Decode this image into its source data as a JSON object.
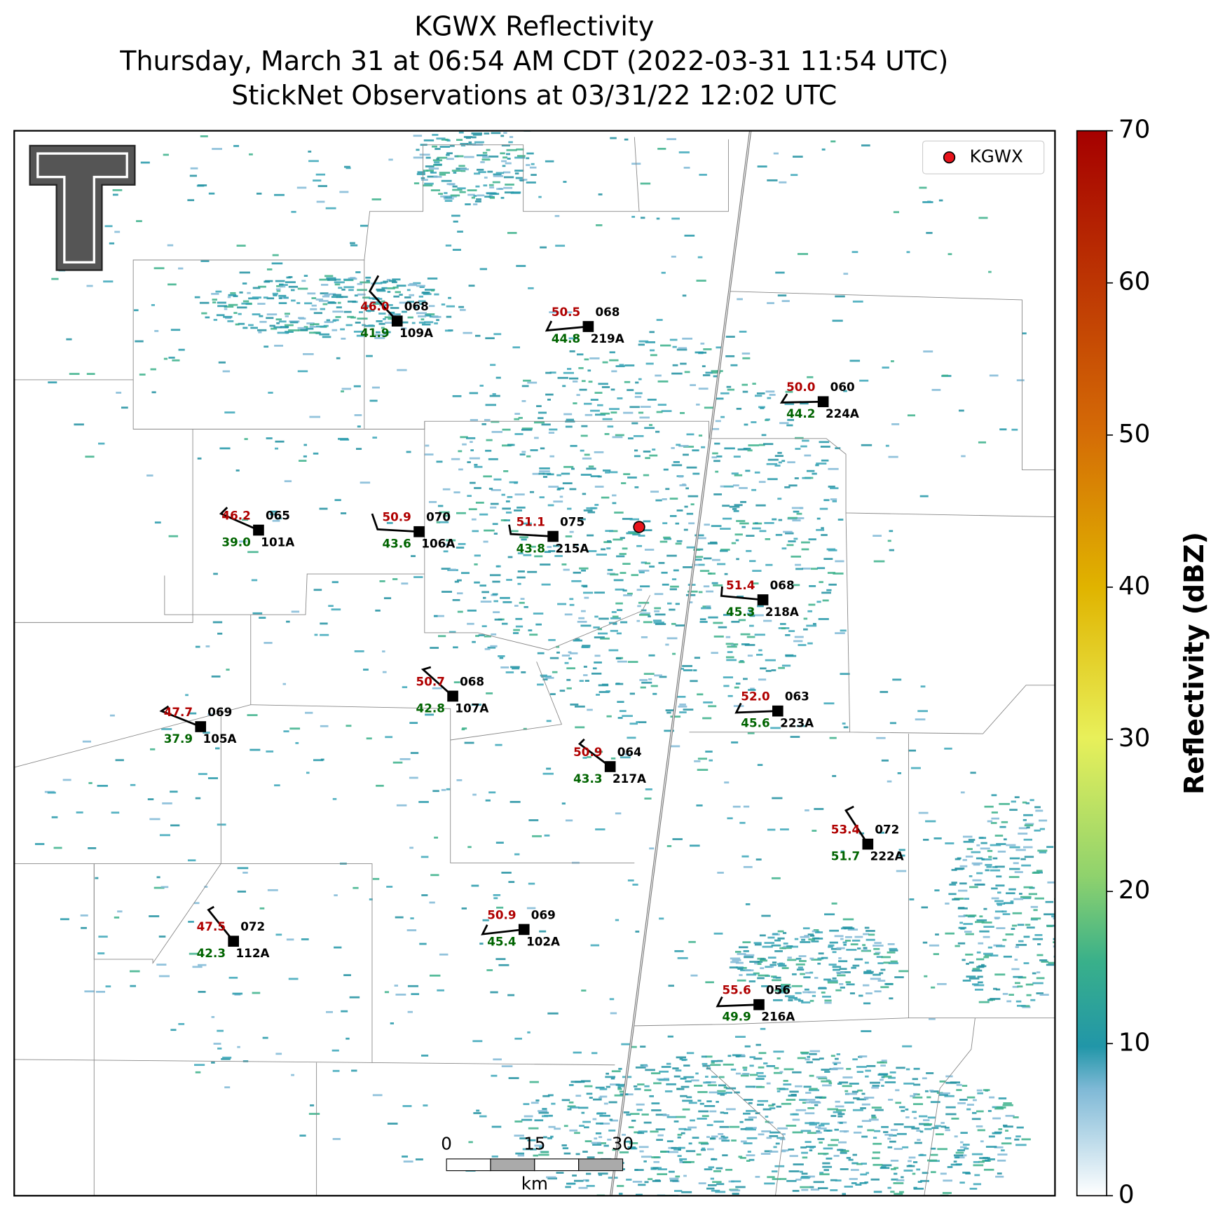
{
  "title": [
    "KGWX Reflectivity",
    "Thursday, March 31 at 06:54 AM CDT (2022-03-31 11:54 UTC)",
    "StickNet Observations at 03/31/22 12:02 UTC"
  ],
  "legend": {
    "label": "KGWX",
    "color": "#e8141c"
  },
  "colorbar": {
    "label": "Reflectivity (dBZ)",
    "lim": [
      0,
      70
    ],
    "ticks": [
      0,
      10,
      20,
      30,
      40,
      50,
      60,
      70
    ]
  },
  "scalebar": {
    "ticks": [
      0,
      15,
      30
    ],
    "unit": "km"
  },
  "stations": [
    {
      "id": "109A",
      "temperature": "46.0",
      "dewpoint": "41.9",
      "pressure": "068"
    },
    {
      "id": "219A",
      "temperature": "50.5",
      "dewpoint": "44.8",
      "pressure": "068"
    },
    {
      "id": "224A",
      "temperature": "50.0",
      "dewpoint": "44.2",
      "pressure": "060"
    },
    {
      "id": "101A",
      "temperature": "46.2",
      "dewpoint": "39.0",
      "pressure": "065"
    },
    {
      "id": "106A",
      "temperature": "50.9",
      "dewpoint": "43.6",
      "pressure": "070"
    },
    {
      "id": "215A",
      "temperature": "51.1",
      "dewpoint": "43.8",
      "pressure": "075"
    },
    {
      "id": "218A",
      "temperature": "51.4",
      "dewpoint": "45.3",
      "pressure": "068"
    },
    {
      "id": "107A",
      "temperature": "50.7",
      "dewpoint": "42.8",
      "pressure": "068"
    },
    {
      "id": "105A",
      "temperature": "47.7",
      "dewpoint": "37.9",
      "pressure": "069"
    },
    {
      "id": "223A",
      "temperature": "52.0",
      "dewpoint": "45.6",
      "pressure": "063"
    },
    {
      "id": "217A",
      "temperature": "50.9",
      "dewpoint": "43.3",
      "pressure": "064"
    },
    {
      "id": "222A",
      "temperature": "53.4",
      "dewpoint": "51.7",
      "pressure": "072"
    },
    {
      "id": "112A",
      "temperature": "47.5",
      "dewpoint": "42.3",
      "pressure": "072"
    },
    {
      "id": "102A",
      "temperature": "50.9",
      "dewpoint": "45.4",
      "pressure": "069"
    },
    {
      "id": "216A",
      "temperature": "55.6",
      "dewpoint": "49.9",
      "pressure": "056"
    }
  ]
}
